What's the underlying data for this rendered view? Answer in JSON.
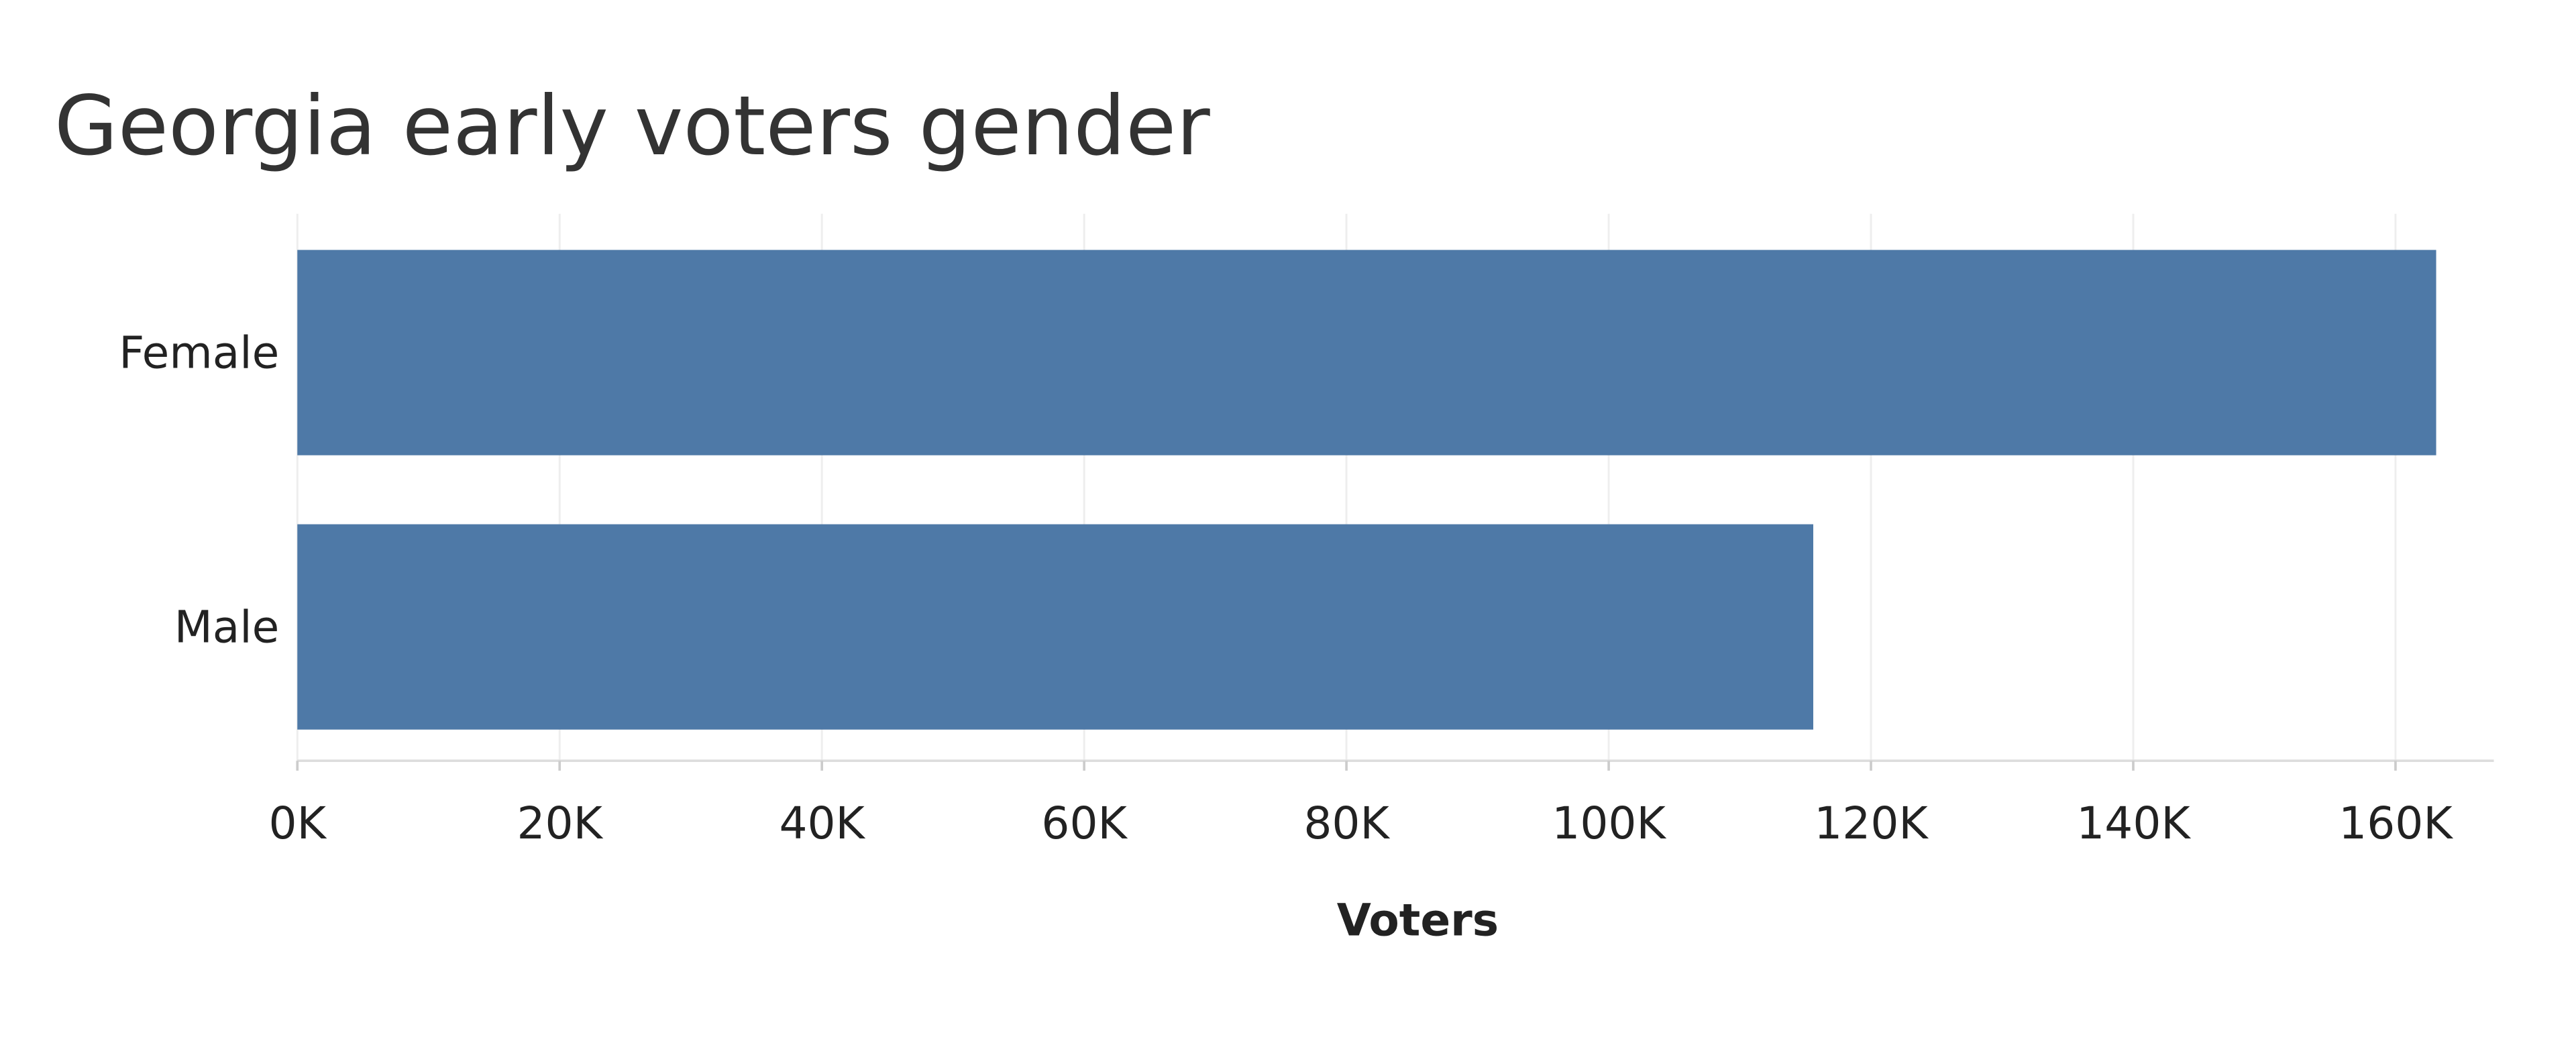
{
  "chart_data": {
    "type": "bar",
    "orientation": "horizontal",
    "title": "Georgia early voters gender",
    "categories": [
      "Female",
      "Male"
    ],
    "values": [
      163100,
      115600
    ],
    "color": "#4e79a7",
    "xlabel": "Voters",
    "xlim": [
      0,
      167500
    ],
    "xticks": [
      {
        "value": 0,
        "label": "0K"
      },
      {
        "value": 20000,
        "label": "20K"
      },
      {
        "value": 40000,
        "label": "40K"
      },
      {
        "value": 60000,
        "label": "60K"
      },
      {
        "value": 80000,
        "label": "80K"
      },
      {
        "value": 100000,
        "label": "100K"
      },
      {
        "value": 120000,
        "label": "120K"
      },
      {
        "value": 140000,
        "label": "140K"
      },
      {
        "value": 160000,
        "label": "160K"
      }
    ],
    "grid": true
  }
}
